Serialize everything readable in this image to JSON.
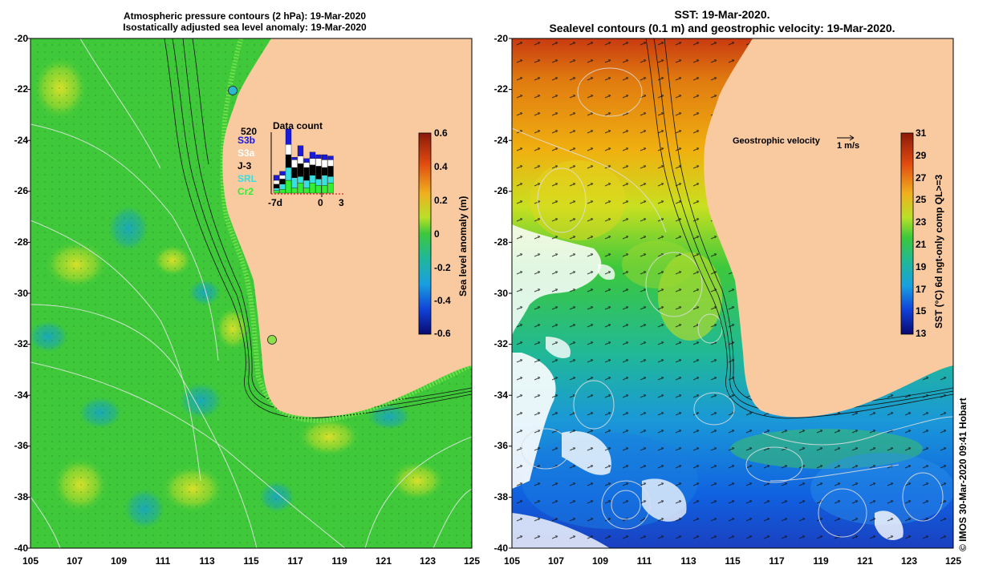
{
  "left_panel": {
    "title_line1": "Atmospheric pressure contours (2 hPa): 19-Mar-2020",
    "title_line2": "Isostatically adjusted sea level anomaly: 19-Mar-2020",
    "colorbar_title": "Sea level anomaly (m)",
    "colorbar_ticks": [
      "0.6",
      "0.4",
      "0.2",
      "0",
      "-0.2",
      "-0.4",
      "-0.6"
    ],
    "data_count": {
      "title": "Data count",
      "max_label": "520",
      "x_labels": [
        "-7d",
        "0",
        "3"
      ],
      "satellites": [
        {
          "name": "S3b",
          "color": "#1a1ad8"
        },
        {
          "name": "S3a",
          "color": "#ffffff"
        },
        {
          "name": "J-3",
          "color": "#000000"
        },
        {
          "name": "SRL",
          "color": "#37e0e0"
        },
        {
          "name": "Cr2",
          "color": "#33ee33"
        }
      ]
    }
  },
  "right_panel": {
    "title_line1": "SST: 19-Mar-2020.",
    "title_line2": "Sealevel contours (0.1 m) and geostrophic velocity: 19-Mar-2020.",
    "colorbar_title": "SST (°C) 6d ngt-only comp QL>=3",
    "colorbar_ticks": [
      "31",
      "29",
      "27",
      "25",
      "23",
      "21",
      "19",
      "17",
      "15",
      "13"
    ],
    "velocity_label": "Geostrophic velocity",
    "velocity_unit": "1 m/s"
  },
  "axes": {
    "y_labels": [
      "-20",
      "-22",
      "-24",
      "-26",
      "-28",
      "-30",
      "-32",
      "-34",
      "-36",
      "-38",
      "-40"
    ],
    "x_labels": [
      "105",
      "107",
      "109",
      "111",
      "113",
      "115",
      "117",
      "119",
      "121",
      "123",
      "125"
    ]
  },
  "credit": "© IMOS 30-Mar-2020 09:41 Hobart",
  "colors": {
    "land": "#f9c9a0",
    "sla_base": "#3fc93a",
    "coast_outline": "#6ee04a"
  }
}
